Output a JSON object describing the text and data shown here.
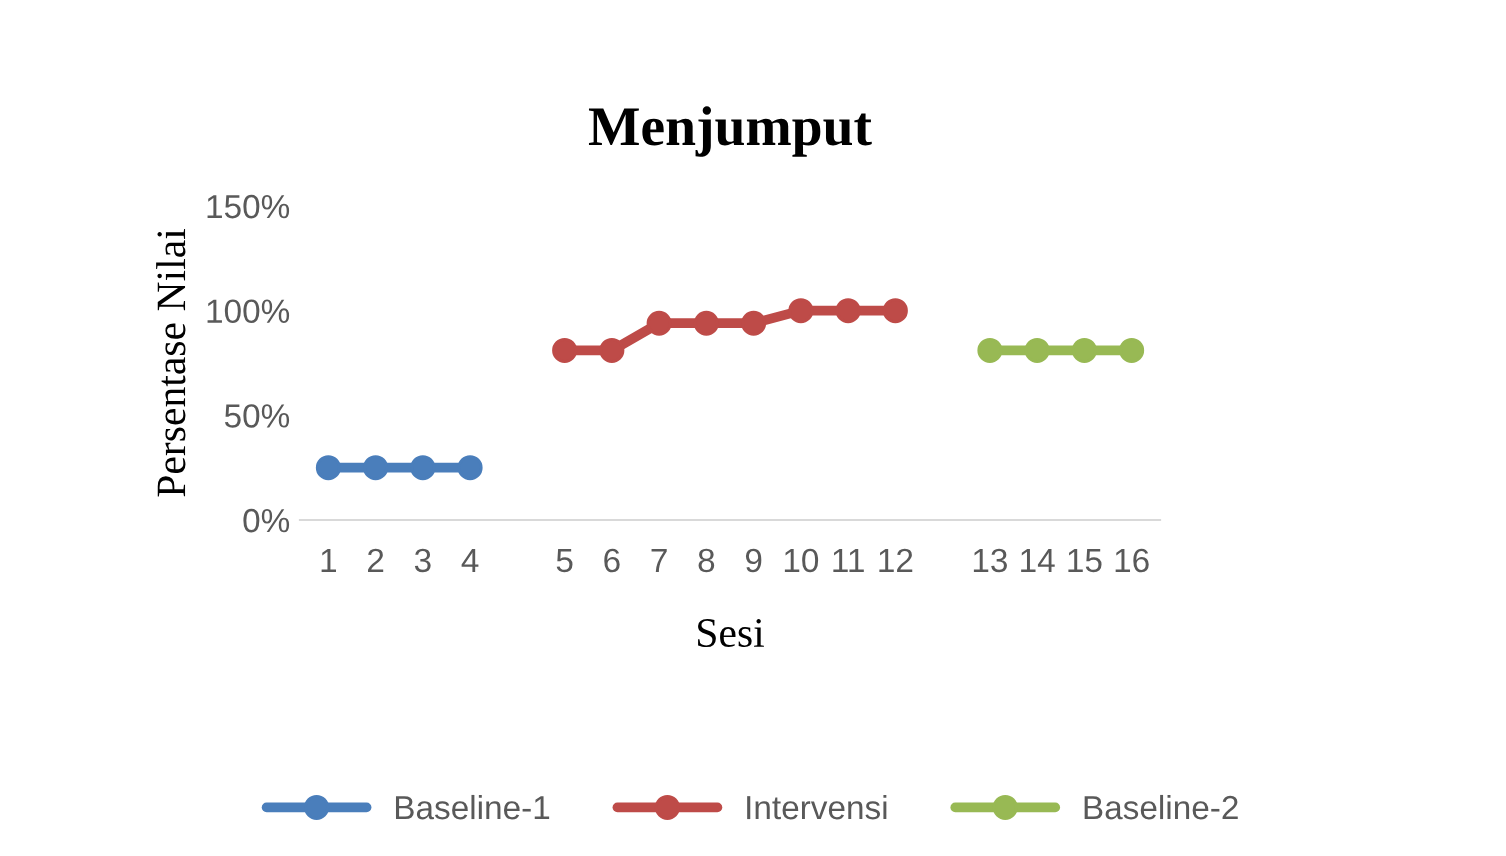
{
  "chart_data": {
    "type": "line",
    "title": "Menjumput",
    "xlabel": "Sesi",
    "ylabel": "Persentase Nilai",
    "categories": [
      "1",
      "2",
      "3",
      "4",
      null,
      "5",
      "6",
      "7",
      "8",
      "9",
      "10",
      "11",
      "12",
      null,
      "13",
      "14",
      "15",
      "16"
    ],
    "series": [
      {
        "name": "Baseline-1",
        "color": "#4a7ebb",
        "values": [
          25,
          25,
          25,
          25,
          null,
          null,
          null,
          null,
          null,
          null,
          null,
          null,
          null,
          null,
          null,
          null,
          null,
          null
        ]
      },
      {
        "name": "Intervensi",
        "color": "#be4b48",
        "values": [
          null,
          null,
          null,
          null,
          null,
          81,
          81,
          94,
          94,
          94,
          100,
          100,
          100,
          null,
          null,
          null,
          null,
          null
        ]
      },
      {
        "name": "Baseline-2",
        "color": "#98b954",
        "values": [
          null,
          null,
          null,
          null,
          null,
          null,
          null,
          null,
          null,
          null,
          null,
          null,
          null,
          null,
          81,
          81,
          81,
          81
        ]
      }
    ],
    "ylim": [
      0,
      150
    ],
    "yticks": [
      {
        "value": 0,
        "label": "0%"
      },
      {
        "value": 50,
        "label": "50%"
      },
      {
        "value": 100,
        "label": "100%"
      },
      {
        "value": 150,
        "label": "150%"
      }
    ],
    "marker": "circle",
    "line_style": "solid",
    "legend": "bottom",
    "grid": false
  }
}
